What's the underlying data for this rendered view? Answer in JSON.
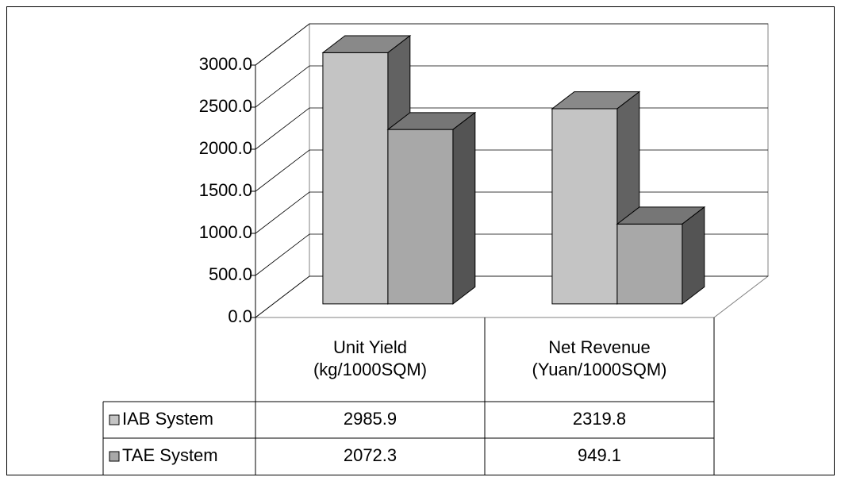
{
  "chart_data": {
    "type": "bar3d",
    "categories": [
      "Unit Yield (kg/1000SQM)",
      "Net Revenue (Yuan/1000SQM)"
    ],
    "series": [
      {
        "name": "IAB System",
        "color": "#c4c4c4",
        "values": [
          2985.9,
          2319.8
        ]
      },
      {
        "name": "TAE System",
        "color": "#a8a8a8",
        "values": [
          2072.3,
          949.1
        ]
      }
    ],
    "ylim": [
      0,
      3000
    ],
    "yticks": [
      {
        "value": 0,
        "label": "0.0"
      },
      {
        "value": 500,
        "label": "500.0"
      },
      {
        "value": 1000,
        "label": "1000.0"
      },
      {
        "value": 1500,
        "label": "1500.0"
      },
      {
        "value": 2000,
        "label": "2000.0"
      },
      {
        "value": 2500,
        "label": "2500.0"
      },
      {
        "value": 3000,
        "label": "3000.0"
      }
    ],
    "grid": true,
    "data_table": true
  }
}
